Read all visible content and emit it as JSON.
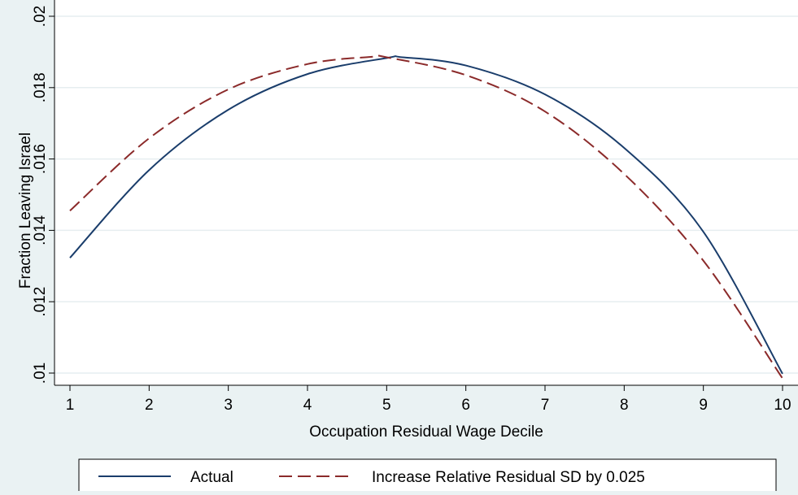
{
  "chart_data": {
    "type": "line",
    "xlabel": "Occupation Residual Wage Decile",
    "ylabel": "Fraction Leaving Israel",
    "xlim": [
      1,
      10
    ],
    "ylim": [
      0.01,
      0.02
    ],
    "xticks": [
      1,
      2,
      3,
      4,
      5,
      6,
      7,
      8,
      9,
      10
    ],
    "xtick_labels": [
      "1",
      "2",
      "3",
      "4",
      "5",
      "6",
      "7",
      "8",
      "9",
      "10"
    ],
    "yticks": [
      0.01,
      0.012,
      0.014,
      0.016,
      0.018,
      0.02
    ],
    "ytick_labels": [
      ".01",
      ".012",
      ".014",
      ".016",
      ".018",
      ".02"
    ],
    "grid": "horizontal",
    "legend_position": "bottom",
    "series": [
      {
        "name": "Actual",
        "style": "solid",
        "color": "#1a3d6b",
        "x": [
          1,
          2,
          3,
          4,
          5,
          5.2,
          6,
          7,
          8,
          9,
          10
        ],
        "y": [
          0.01323,
          0.01569,
          0.01738,
          0.01838,
          0.01883,
          0.01885,
          0.01862,
          0.01781,
          0.01631,
          0.01396,
          0.00998
        ]
      },
      {
        "name": "Increase Relative Residual SD by 0.025",
        "style": "dashed",
        "color": "#8b2a2a",
        "x": [
          1,
          2,
          3,
          4,
          4.8,
          5,
          6,
          7,
          8,
          9,
          10
        ],
        "y": [
          0.01455,
          0.01658,
          0.01795,
          0.01866,
          0.01886,
          0.01885,
          0.01835,
          0.01733,
          0.01558,
          0.01315,
          0.00985
        ]
      }
    ]
  }
}
